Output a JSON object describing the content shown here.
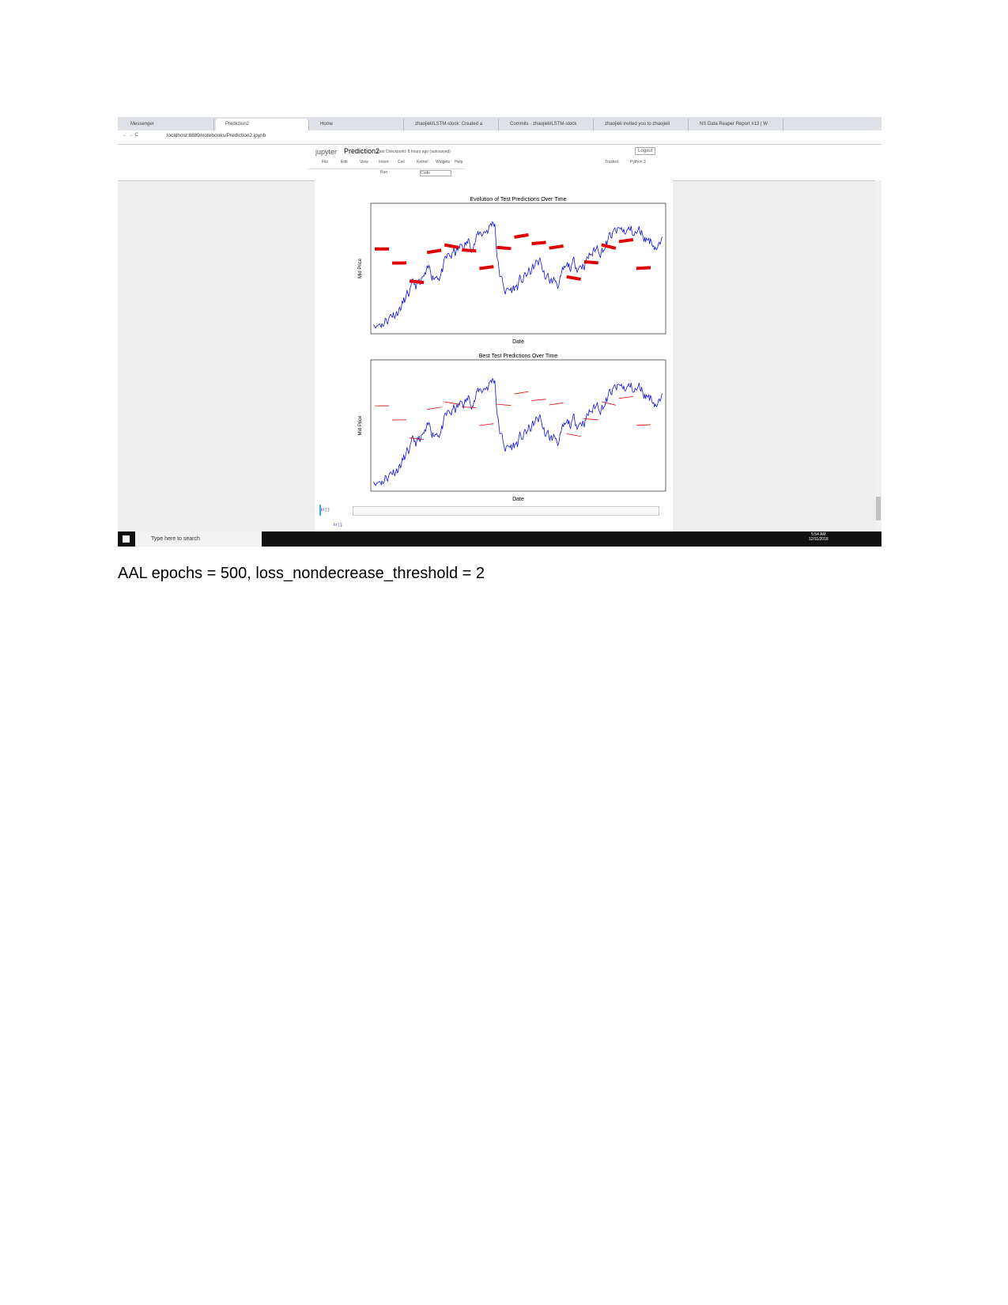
{
  "screenshot": {
    "tabs": [
      "Messenger",
      "Prediction2",
      "Home",
      "zhaojieli/LSTM-stock: Created a",
      "Commits · zhaojieli/LSTM-stock",
      "zhaojieli invited you to zhaojieli",
      "NS Data Reaper Report #13 | W"
    ],
    "url": "localhost:8889/notebooks/Prediction2.ipynb",
    "notebook": {
      "logo": "jupyter",
      "title": "Prediction2",
      "checkpoint": "Last Checkpoint: 8 hours ago (autosaved)",
      "logout": "Logout",
      "menu": [
        "File",
        "Edit",
        "View",
        "Insert",
        "Cell",
        "Kernel",
        "Widgets",
        "Help"
      ],
      "trusted": "Trusted",
      "kernel": "Python 3",
      "cell_type": "Code",
      "run": "Run"
    },
    "charts": [
      {
        "title": "Evolution of Test Predictions Over Time",
        "ylabel": "Mid Price",
        "xlabel": "Date"
      },
      {
        "title": "Best Test Predictions Over Time",
        "ylabel": "Mid Price",
        "xlabel": "Date"
      }
    ],
    "input_prompts": [
      "In [ ]:",
      "In [ ]:"
    ],
    "taskbar": {
      "search": "Type here to search",
      "time": "5:54 AM",
      "date": "12/11/2018"
    }
  },
  "caption": "AAL epochs = 500, loss_nondecrease_threshold = 2"
}
